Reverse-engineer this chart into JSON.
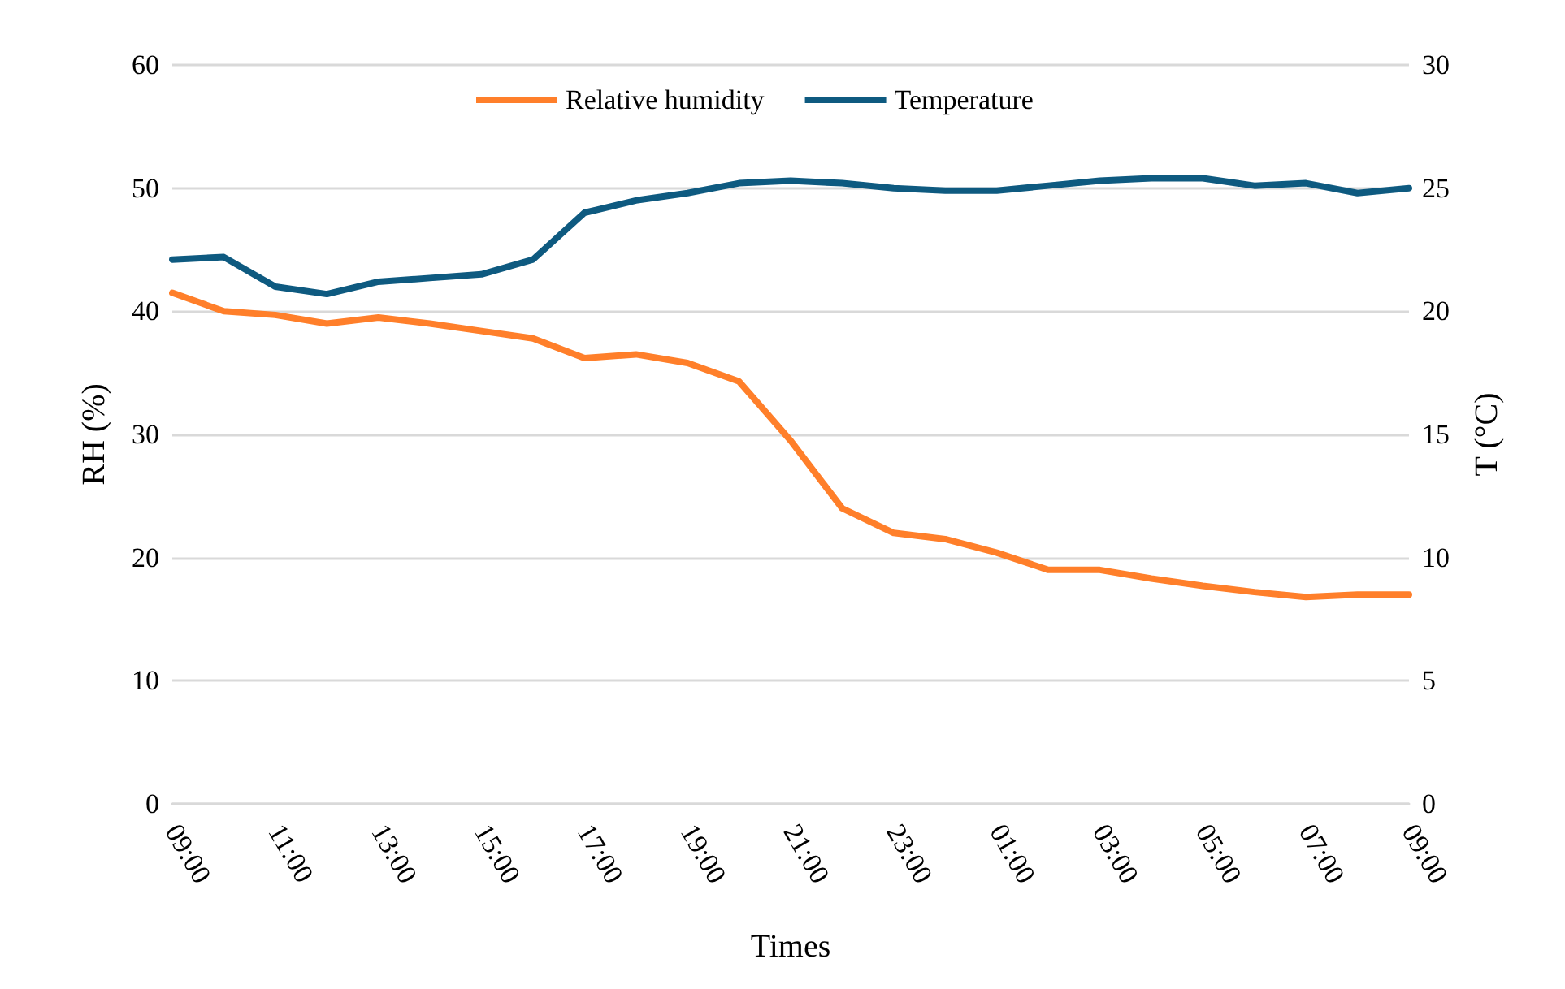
{
  "chart_data": {
    "type": "line",
    "xlabel": "Times",
    "ylabel": "RH (%)",
    "y2label": "T (°C)",
    "categories": [
      "09:00",
      null,
      "11:00",
      null,
      "13:00",
      null,
      "15:00",
      null,
      "17:00",
      null,
      "19:00",
      null,
      "21:00",
      null,
      "23:00",
      null,
      "01:00",
      null,
      "03:00",
      null,
      "05:00",
      null,
      "07:00",
      null,
      "09:00"
    ],
    "series": [
      {
        "name": "Relative humidity",
        "color": "#ff7f2a",
        "values": [
          41.5,
          40,
          39.7,
          39,
          39.5,
          39,
          38.4,
          37.8,
          36.2,
          36.5,
          35.8,
          34.3,
          29.5,
          24,
          22,
          21.5,
          20.4,
          19,
          19,
          18.3,
          17.7,
          17.2,
          16.8,
          17,
          17
        ]
      },
      {
        "name": "Temperature",
        "color": "#0e5a80",
        "axis": "y2",
        "values": [
          22.1,
          22.2,
          21,
          20.7,
          21.2,
          21.35,
          21.5,
          22.1,
          24,
          24.5,
          24.8,
          25.2,
          25.3,
          25.2,
          25,
          24.9,
          24.9,
          25.1,
          25.3,
          25.4,
          25.4,
          25.1,
          25.2,
          24.8,
          25
        ]
      }
    ],
    "ylim": [
      0,
      60
    ],
    "yticks": [
      0,
      10,
      20,
      30,
      40,
      50,
      60
    ],
    "y2lim": [
      0,
      30
    ],
    "y2ticks": [
      0,
      5,
      10,
      15,
      20,
      25,
      30
    ],
    "grid": "y",
    "legend": "top",
    "marker": "none",
    "line_style": "solid"
  }
}
